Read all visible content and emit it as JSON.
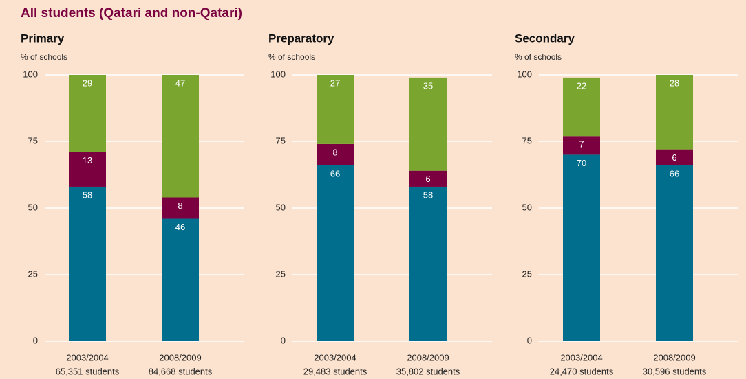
{
  "title": "All students (Qatari and non-Qatari)",
  "chart_data": [
    {
      "type": "stacked_bar",
      "title": "Primary",
      "y_label": "% of schools",
      "categories": [
        "2003/2004",
        "2008/2009"
      ],
      "category_sublabels": [
        "65,351 students",
        "84,668 students"
      ],
      "ylim": [
        0,
        100
      ],
      "yticks": [
        0,
        25,
        50,
        75,
        100
      ],
      "grid": true,
      "series": [
        {
          "color": "#006e8c",
          "values": [
            58,
            46
          ]
        },
        {
          "color": "#7a0040",
          "values": [
            13,
            8
          ]
        },
        {
          "color": "#7aa52f",
          "values": [
            29,
            47
          ]
        }
      ]
    },
    {
      "type": "stacked_bar",
      "title": "Preparatory",
      "y_label": "% of schools",
      "categories": [
        "2003/2004",
        "2008/2009"
      ],
      "category_sublabels": [
        "29,483 students",
        "35,802 students"
      ],
      "ylim": [
        0,
        100
      ],
      "yticks": [
        0,
        25,
        50,
        75,
        100
      ],
      "grid": true,
      "series": [
        {
          "color": "#006e8c",
          "values": [
            66,
            58
          ]
        },
        {
          "color": "#7a0040",
          "values": [
            8,
            6
          ]
        },
        {
          "color": "#7aa52f",
          "values": [
            27,
            35
          ]
        }
      ]
    },
    {
      "type": "stacked_bar",
      "title": "Secondary",
      "y_label": "% of schools",
      "categories": [
        "2003/2004",
        "2008/2009"
      ],
      "category_sublabels": [
        "24,470 students",
        "30,596 students"
      ],
      "ylim": [
        0,
        100
      ],
      "yticks": [
        0,
        25,
        50,
        75,
        100
      ],
      "grid": true,
      "series": [
        {
          "color": "#006e8c",
          "values": [
            70,
            66
          ]
        },
        {
          "color": "#7a0040",
          "values": [
            7,
            6
          ]
        },
        {
          "color": "#7aa52f",
          "values": [
            22,
            28
          ]
        }
      ]
    }
  ]
}
